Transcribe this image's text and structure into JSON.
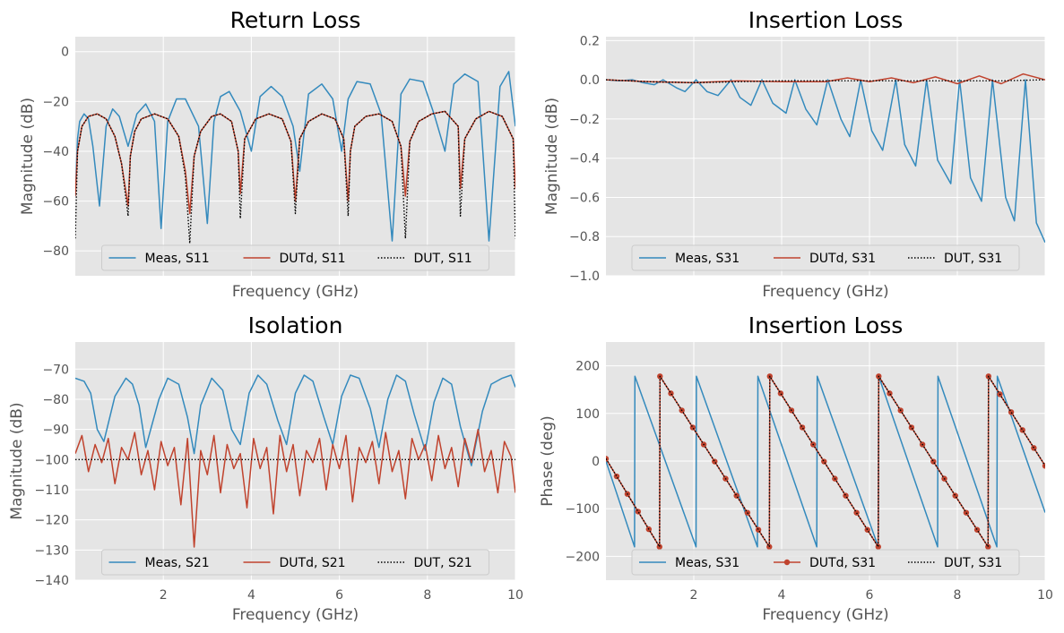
{
  "colors": {
    "meas": "#348abd",
    "dutd": "#c0432e",
    "dut": "#000000",
    "background": "#e5e5e5",
    "grid": "#ffffff"
  },
  "chart_data": [
    {
      "id": "return-loss",
      "type": "line",
      "title": "Return Loss",
      "xlabel": "Frequency (GHz)",
      "ylabel": "Magnitude (dB)",
      "xlim": [
        0,
        10
      ],
      "ylim": [
        -90,
        6
      ],
      "yticks": [
        "0",
        "−20",
        "−40",
        "−60",
        "−80"
      ],
      "yticks_values": [
        0,
        -20,
        -40,
        -60,
        -80
      ],
      "xticks_visible": false,
      "legend": "bottom-center, 3 columns",
      "grid": true,
      "series": [
        {
          "name": "Meas, S11",
          "style": "solid",
          "x": [
            0.0,
            0.05,
            0.1,
            0.2,
            0.3,
            0.4,
            0.55,
            0.7,
            0.85,
            1.0,
            1.2,
            1.4,
            1.6,
            1.8,
            1.95,
            2.1,
            2.3,
            2.5,
            2.8,
            3.0,
            3.15,
            3.3,
            3.5,
            3.75,
            4.0,
            4.2,
            4.45,
            4.7,
            4.95,
            5.1,
            5.3,
            5.6,
            5.85,
            6.05,
            6.2,
            6.4,
            6.7,
            6.95,
            7.2,
            7.4,
            7.6,
            7.9,
            8.15,
            8.4,
            8.6,
            8.85,
            9.15,
            9.4,
            9.65,
            9.85,
            10.0
          ],
          "y": [
            -58,
            -35,
            -28,
            -25,
            -27,
            -38,
            -62,
            -30,
            -23,
            -26,
            -38,
            -25,
            -21,
            -28,
            -71,
            -28,
            -19,
            -19,
            -30,
            -69,
            -28,
            -18,
            -16,
            -24,
            -40,
            -18,
            -14,
            -18,
            -30,
            -48,
            -17,
            -13,
            -19,
            -40,
            -19,
            -12,
            -13,
            -25,
            -76,
            -17,
            -11,
            -12,
            -25,
            -40,
            -13,
            -9,
            -12,
            -76,
            -14,
            -8,
            -30
          ]
        },
        {
          "name": "DUTd, S11",
          "style": "solid",
          "x": [
            0.0,
            0.05,
            0.15,
            0.3,
            0.5,
            0.7,
            0.9,
            1.05,
            1.2,
            1.25,
            1.35,
            1.5,
            1.8,
            2.1,
            2.35,
            2.5,
            2.6,
            2.7,
            2.85,
            3.1,
            3.3,
            3.55,
            3.7,
            3.75,
            3.85,
            4.1,
            4.4,
            4.7,
            4.9,
            5.0,
            5.1,
            5.3,
            5.6,
            5.9,
            6.1,
            6.2,
            6.25,
            6.35,
            6.6,
            6.9,
            7.2,
            7.4,
            7.5,
            7.6,
            7.8,
            8.1,
            8.4,
            8.7,
            8.75,
            8.85,
            9.1,
            9.4,
            9.7,
            9.95,
            10.0
          ],
          "y": [
            -58,
            -40,
            -30,
            -26,
            -25,
            -27,
            -34,
            -45,
            -62,
            -42,
            -32,
            -27,
            -25,
            -27,
            -34,
            -48,
            -65,
            -42,
            -32,
            -26,
            -25,
            -28,
            -40,
            -57,
            -35,
            -27,
            -25,
            -27,
            -36,
            -60,
            -35,
            -28,
            -25,
            -27,
            -35,
            -60,
            -40,
            -30,
            -26,
            -25,
            -28,
            -38,
            -58,
            -36,
            -28,
            -25,
            -24,
            -30,
            -55,
            -35,
            -27,
            -24,
            -26,
            -35,
            -55
          ]
        },
        {
          "name": "DUT, S11",
          "style": "dotted",
          "x": [
            0.0,
            0.05,
            0.15,
            0.3,
            0.5,
            0.7,
            0.9,
            1.05,
            1.2,
            1.25,
            1.35,
            1.5,
            1.8,
            2.1,
            2.35,
            2.5,
            2.6,
            2.7,
            2.85,
            3.1,
            3.3,
            3.55,
            3.7,
            3.75,
            3.85,
            4.1,
            4.4,
            4.7,
            4.9,
            5.0,
            5.1,
            5.3,
            5.6,
            5.9,
            6.1,
            6.2,
            6.25,
            6.35,
            6.6,
            6.9,
            7.2,
            7.4,
            7.5,
            7.6,
            7.8,
            8.1,
            8.4,
            8.7,
            8.75,
            8.85,
            9.1,
            9.4,
            9.7,
            9.95,
            10.0
          ],
          "y": [
            -75,
            -40,
            -30,
            -26,
            -25,
            -27,
            -34,
            -45,
            -66,
            -42,
            -32,
            -27,
            -25,
            -27,
            -34,
            -50,
            -77,
            -42,
            -32,
            -26,
            -25,
            -28,
            -40,
            -67,
            -35,
            -27,
            -25,
            -27,
            -36,
            -65,
            -35,
            -28,
            -25,
            -27,
            -35,
            -66,
            -40,
            -30,
            -26,
            -25,
            -28,
            -38,
            -75,
            -36,
            -28,
            -25,
            -24,
            -30,
            -66,
            -35,
            -27,
            -24,
            -26,
            -35,
            -75
          ]
        }
      ]
    },
    {
      "id": "insertion-loss-mag",
      "type": "line",
      "title": "Insertion Loss",
      "xlabel": "Frequency (GHz)",
      "ylabel": "Magnitude (dB)",
      "xlim": [
        0,
        10
      ],
      "ylim": [
        -1.0,
        0.22
      ],
      "yticks": [
        "0.2",
        "0.0",
        "−0.2",
        "−0.4",
        "−0.6",
        "−0.8",
        "−1.0"
      ],
      "yticks_values": [
        0.2,
        0.0,
        -0.2,
        -0.4,
        -0.6,
        -0.8,
        -1.0
      ],
      "xticks_visible": false,
      "legend": "bottom-center, 3 columns",
      "grid": true,
      "series": [
        {
          "name": "Meas, S31",
          "style": "solid",
          "x": [
            0.0,
            0.3,
            0.6,
            0.85,
            1.1,
            1.3,
            1.6,
            1.8,
            2.05,
            2.3,
            2.55,
            2.85,
            3.05,
            3.3,
            3.55,
            3.8,
            4.1,
            4.3,
            4.55,
            4.8,
            5.05,
            5.35,
            5.55,
            5.8,
            6.05,
            6.3,
            6.6,
            6.8,
            7.05,
            7.3,
            7.55,
            7.85,
            8.05,
            8.3,
            8.55,
            8.8,
            9.1,
            9.3,
            9.55,
            9.8,
            10.0
          ],
          "y": [
            0.0,
            -0.005,
            -0.0,
            -0.015,
            -0.025,
            0.0,
            -0.04,
            -0.06,
            0.0,
            -0.06,
            -0.08,
            0.0,
            -0.09,
            -0.13,
            0.0,
            -0.12,
            -0.17,
            0.0,
            -0.15,
            -0.23,
            0.0,
            -0.2,
            -0.29,
            0.0,
            -0.26,
            -0.36,
            0.0,
            -0.33,
            -0.44,
            0.0,
            -0.41,
            -0.53,
            0.0,
            -0.5,
            -0.62,
            0.0,
            -0.6,
            -0.72,
            0.0,
            -0.73,
            -0.83
          ]
        },
        {
          "name": "DUTd, S31",
          "style": "solid",
          "x": [
            0.0,
            1.0,
            2.0,
            3.0,
            4.0,
            5.0,
            5.5,
            6.0,
            6.5,
            7.0,
            7.5,
            8.0,
            8.5,
            9.0,
            9.5,
            10.0
          ],
          "y": [
            0.0,
            -0.01,
            -0.015,
            -0.005,
            -0.01,
            -0.01,
            0.01,
            -0.01,
            0.01,
            -0.015,
            0.015,
            -0.02,
            0.02,
            -0.02,
            0.03,
            0.0
          ]
        },
        {
          "name": "DUT, S31",
          "style": "dotted",
          "x": [
            0.0,
            1.0,
            2.0,
            3.0,
            4.0,
            5.0,
            6.0,
            7.0,
            8.0,
            9.0,
            10.0
          ],
          "y": [
            0.0,
            -0.01,
            -0.015,
            -0.01,
            -0.005,
            -0.005,
            -0.005,
            -0.005,
            -0.005,
            -0.005,
            0.0
          ]
        }
      ]
    },
    {
      "id": "isolation",
      "type": "line",
      "title": "Isolation",
      "xlabel": "Frequency (GHz)",
      "ylabel": "Magnitude (dB)",
      "xlim": [
        0,
        10
      ],
      "ylim": [
        -140,
        -61
      ],
      "yticks": [
        "−70",
        "−80",
        "−90",
        "−100",
        "−110",
        "−120",
        "−130",
        "−140"
      ],
      "yticks_values": [
        -70,
        -80,
        -90,
        -100,
        -110,
        -120,
        -130,
        -140
      ],
      "xticks": [
        "2",
        "4",
        "6",
        "8",
        "10"
      ],
      "xticks_values": [
        2,
        4,
        6,
        8,
        10
      ],
      "legend": "bottom-center, 3 columns",
      "grid": true,
      "series": [
        {
          "name": "Meas, S21",
          "style": "solid",
          "x": [
            0.0,
            0.2,
            0.35,
            0.5,
            0.65,
            0.9,
            1.15,
            1.3,
            1.45,
            1.6,
            1.9,
            2.1,
            2.35,
            2.55,
            2.7,
            2.85,
            3.1,
            3.35,
            3.55,
            3.75,
            3.95,
            4.15,
            4.35,
            4.6,
            4.8,
            5.0,
            5.2,
            5.4,
            5.65,
            5.85,
            6.05,
            6.25,
            6.45,
            6.7,
            6.9,
            7.1,
            7.3,
            7.5,
            7.7,
            7.95,
            8.15,
            8.35,
            8.55,
            8.75,
            9.0,
            9.25,
            9.45,
            9.7,
            9.9,
            10.0
          ],
          "y": [
            -73,
            -74,
            -78,
            -90,
            -94,
            -79,
            -73,
            -75,
            -82,
            -96,
            -80,
            -73,
            -75,
            -86,
            -98,
            -82,
            -73,
            -77,
            -90,
            -95,
            -78,
            -72,
            -75,
            -87,
            -95,
            -78,
            -72,
            -74,
            -86,
            -95,
            -79,
            -72,
            -73,
            -83,
            -96,
            -80,
            -72,
            -74,
            -85,
            -97,
            -81,
            -73,
            -75,
            -89,
            -102,
            -84,
            -75,
            -73,
            -72,
            -76
          ]
        },
        {
          "name": "DUTd, S21",
          "style": "solid",
          "x": [
            0.0,
            0.15,
            0.3,
            0.45,
            0.6,
            0.75,
            0.9,
            1.05,
            1.2,
            1.35,
            1.5,
            1.65,
            1.8,
            1.95,
            2.1,
            2.25,
            2.4,
            2.55,
            2.7,
            2.85,
            3.0,
            3.15,
            3.3,
            3.45,
            3.6,
            3.75,
            3.9,
            4.05,
            4.2,
            4.35,
            4.5,
            4.65,
            4.8,
            4.95,
            5.1,
            5.25,
            5.4,
            5.55,
            5.7,
            5.85,
            6.0,
            6.15,
            6.3,
            6.45,
            6.6,
            6.75,
            6.9,
            7.05,
            7.2,
            7.35,
            7.5,
            7.65,
            7.8,
            7.95,
            8.1,
            8.25,
            8.4,
            8.55,
            8.7,
            8.85,
            9.0,
            9.15,
            9.3,
            9.45,
            9.6,
            9.75,
            9.9,
            10.0
          ],
          "y": [
            -98,
            -92,
            -104,
            -95,
            -101,
            -93,
            -108,
            -96,
            -100,
            -91,
            -105,
            -97,
            -110,
            -94,
            -102,
            -96,
            -115,
            -93,
            -129,
            -97,
            -105,
            -92,
            -111,
            -95,
            -103,
            -98,
            -116,
            -93,
            -103,
            -96,
            -118,
            -92,
            -104,
            -95,
            -112,
            -97,
            -101,
            -93,
            -110,
            -95,
            -103,
            -92,
            -114,
            -96,
            -101,
            -94,
            -108,
            -91,
            -104,
            -97,
            -113,
            -93,
            -100,
            -95,
            -107,
            -92,
            -103,
            -96,
            -109,
            -93,
            -101,
            -90,
            -104,
            -97,
            -111,
            -94,
            -99,
            -111
          ]
        },
        {
          "name": "DUT, S21",
          "style": "dotted",
          "x": [
            0.0,
            10.0
          ],
          "y": [
            -100,
            -100
          ]
        }
      ]
    },
    {
      "id": "insertion-loss-phase",
      "type": "line",
      "title": "Insertion Loss",
      "xlabel": "Frequency (GHz)",
      "ylabel": "Phase (deg)",
      "xlim": [
        0,
        10
      ],
      "ylim": [
        -250,
        250
      ],
      "yticks": [
        "200",
        "100",
        "0",
        "−100",
        "−200"
      ],
      "yticks_values": [
        200,
        100,
        0,
        -100,
        -200
      ],
      "xticks": [
        "2",
        "4",
        "6",
        "8",
        "10"
      ],
      "xticks_values": [
        2,
        4,
        6,
        8,
        10
      ],
      "legend": "bottom-center, 3 columns",
      "grid": true,
      "series": [
        {
          "name": "Meas, S31",
          "style": "solid",
          "x": [
            0.0,
            0.65,
            0.66,
            2.05,
            2.06,
            3.45,
            3.46,
            4.8,
            4.81,
            6.2,
            6.21,
            7.55,
            7.56,
            8.9,
            8.91,
            10.0
          ],
          "y": [
            0,
            -180,
            178,
            -180,
            178,
            -180,
            178,
            -180,
            178,
            -180,
            178,
            -180,
            178,
            -180,
            178,
            -108
          ]
        },
        {
          "name": "DUTd, S31",
          "style": "solid-markers",
          "x": [
            0.0,
            1.22,
            1.23,
            3.72,
            3.73,
            6.2,
            6.21,
            8.7,
            8.71,
            10.0
          ],
          "y": [
            5,
            -180,
            178,
            -180,
            178,
            -180,
            178,
            -180,
            178,
            -10
          ]
        },
        {
          "name": "DUT, S31",
          "style": "dotted",
          "x": [
            0.0,
            1.22,
            1.23,
            3.72,
            3.73,
            6.2,
            6.21,
            8.7,
            8.71,
            10.0
          ],
          "y": [
            5,
            -180,
            178,
            -180,
            178,
            -180,
            178,
            -180,
            178,
            -10
          ]
        }
      ]
    }
  ]
}
